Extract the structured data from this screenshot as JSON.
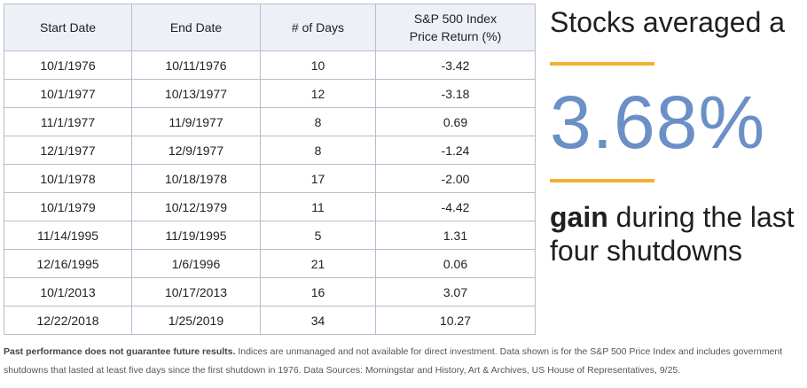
{
  "table": {
    "headers": [
      "Start Date",
      "End Date",
      "# of Days",
      "S&P 500 Index",
      "Price Return (%)"
    ],
    "rows": [
      [
        "10/1/1976",
        "10/11/1976",
        "10",
        "-3.42"
      ],
      [
        "10/1/1977",
        "10/13/1977",
        "12",
        "-3.18"
      ],
      [
        "11/1/1977",
        "11/9/1977",
        "8",
        "0.69"
      ],
      [
        "12/1/1977",
        "12/9/1977",
        "8",
        "-1.24"
      ],
      [
        "10/1/1978",
        "10/18/1978",
        "17",
        "-2.00"
      ],
      [
        "10/1/1979",
        "10/12/1979",
        "11",
        "-4.42"
      ],
      [
        "11/14/1995",
        "11/19/1995",
        "5",
        "1.31"
      ],
      [
        "12/16/1995",
        "1/6/1996",
        "21",
        "0.06"
      ],
      [
        "10/1/2013",
        "10/17/2013",
        "16",
        "3.07"
      ],
      [
        "12/22/2018",
        "1/25/2019",
        "34",
        "10.27"
      ]
    ]
  },
  "callout": {
    "top": "Stocks averaged a",
    "value": "3.68%",
    "bold_word": "gain",
    "rest": " during the last four shutdowns",
    "accent_color": "#6b8fc7",
    "rule_color": "#f2b134"
  },
  "footnote": {
    "bold": "Past performance does not guarantee future results.",
    "text": " Indices are unmanaged and not available for direct investment. Data shown is for the S&P 500 Price Index and includes government shutdowns that lasted at least five days since the first shutdown in 1976. Data Sources: Morningstar and History, Art & Archives, US House of Representatives, 9/25."
  }
}
